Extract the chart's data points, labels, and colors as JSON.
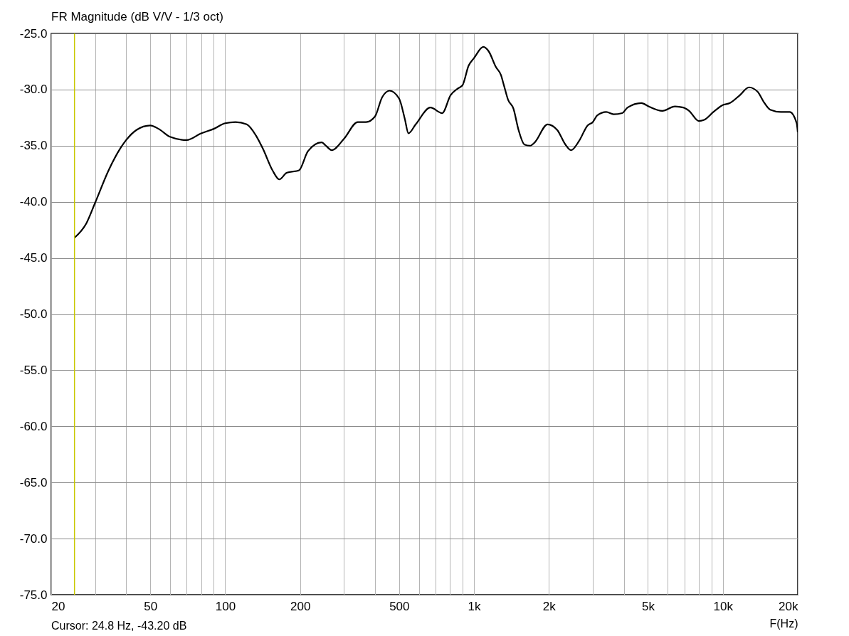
{
  "chart_data": {
    "type": "line",
    "title": "FR Magnitude (dB V/V - 1/3 oct)",
    "xlabel": "F(Hz)",
    "log": "x",
    "grid": true,
    "line_style": "solid",
    "annotations": [
      "Cursor: 24.8 Hz, -43.20 dB"
    ],
    "ref_lines": [
      {
        "axis": "x",
        "value": 24.8,
        "color": "#c8c800"
      }
    ],
    "xlim": [
      20,
      20000
    ],
    "ylim": [
      -75,
      -25
    ],
    "xticks": [
      20,
      {
        "value": 30,
        "label": null
      },
      {
        "value": 40,
        "label": null
      },
      50,
      {
        "value": 60,
        "label": null
      },
      {
        "value": 70,
        "label": null
      },
      {
        "value": 80,
        "label": null
      },
      {
        "value": 90,
        "label": null
      },
      100,
      200,
      {
        "value": 300,
        "label": null
      },
      {
        "value": 400,
        "label": null
      },
      500,
      {
        "value": 600,
        "label": null
      },
      {
        "value": 700,
        "label": null
      },
      {
        "value": 800,
        "label": null
      },
      {
        "value": 900,
        "label": null
      },
      {
        "value": 1000,
        "label": "1k"
      },
      {
        "value": 2000,
        "label": "2k"
      },
      {
        "value": 3000,
        "label": null
      },
      {
        "value": 4000,
        "label": null
      },
      {
        "value": 5000,
        "label": "5k"
      },
      {
        "value": 6000,
        "label": null
      },
      {
        "value": 7000,
        "label": null
      },
      {
        "value": 8000,
        "label": null
      },
      {
        "value": 9000,
        "label": null
      },
      {
        "value": 10000,
        "label": "10k"
      },
      {
        "value": 20000,
        "label": "20k"
      }
    ],
    "yticks": [
      {
        "value": -75,
        "label": "-75.0"
      },
      {
        "value": -70,
        "label": "-70.0"
      },
      {
        "value": -65,
        "label": "-65.0"
      },
      {
        "value": -60,
        "label": "-60.0"
      },
      {
        "value": -55,
        "label": "-55.0"
      },
      {
        "value": -50,
        "label": "-50.0"
      },
      {
        "value": -45,
        "label": "-45.0"
      },
      {
        "value": -40,
        "label": "-40.0"
      },
      {
        "value": -35,
        "label": "-35.0"
      },
      {
        "value": -30,
        "label": "-30.0"
      },
      {
        "value": -25,
        "label": "-25.0"
      }
    ],
    "x": [
      24.8,
      27.7,
      30,
      34,
      38,
      40,
      44,
      50,
      54,
      60,
      70,
      80,
      90,
      100,
      110,
      122,
      133,
      142,
      155,
      165,
      177,
      198,
      215,
      244,
      254,
      268,
      300,
      341,
      368,
      400,
      427,
      458,
      500,
      527,
      545,
      583,
      668,
      745,
      805,
      861,
      900,
      950,
      1000,
      1090,
      1146,
      1225,
      1283,
      1318,
      1370,
      1440,
      1510,
      1595,
      1680,
      1755,
      1975,
      2160,
      2330,
      2456,
      2640,
      2860,
      3000,
      3130,
      3400,
      3640,
      3940,
      4140,
      4710,
      5030,
      5710,
      6420,
      6930,
      7320,
      8000,
      8410,
      9160,
      9960,
      10680,
      11700,
      12730,
      13800,
      14600,
      15500,
      17100,
      18560,
      19800,
      20000
    ],
    "series": [
      {
        "color": "#000000",
        "values": [
          -43.2,
          -41.9,
          -40.1,
          -37.2,
          -35.2,
          -34.5,
          -33.6,
          -33.2,
          -33.5,
          -34.2,
          -34.5,
          -33.9,
          -33.5,
          -33.0,
          -32.9,
          -33.1,
          -34.1,
          -35.3,
          -37.2,
          -38.0,
          -37.4,
          -37.2,
          -35.5,
          -34.7,
          -35.0,
          -35.4,
          -34.4,
          -32.9,
          -32.9,
          -32.4,
          -30.7,
          -30.1,
          -30.8,
          -32.6,
          -33.9,
          -33.1,
          -31.6,
          -32.1,
          -30.5,
          -29.9,
          -29.6,
          -27.9,
          -27.2,
          -26.2,
          -26.6,
          -28.0,
          -28.7,
          -29.6,
          -30.9,
          -31.7,
          -33.6,
          -34.9,
          -35.0,
          -34.7,
          -33.1,
          -33.6,
          -34.9,
          -35.4,
          -34.6,
          -33.2,
          -32.9,
          -32.3,
          -32.0,
          -32.2,
          -32.1,
          -31.6,
          -31.2,
          -31.5,
          -31.9,
          -31.5,
          -31.6,
          -31.9,
          -32.8,
          -32.7,
          -32.0,
          -31.4,
          -31.2,
          -30.5,
          -29.8,
          -30.2,
          -31.1,
          -31.8,
          -32.0,
          -32.0,
          -33.0,
          -33.8
        ]
      }
    ]
  }
}
